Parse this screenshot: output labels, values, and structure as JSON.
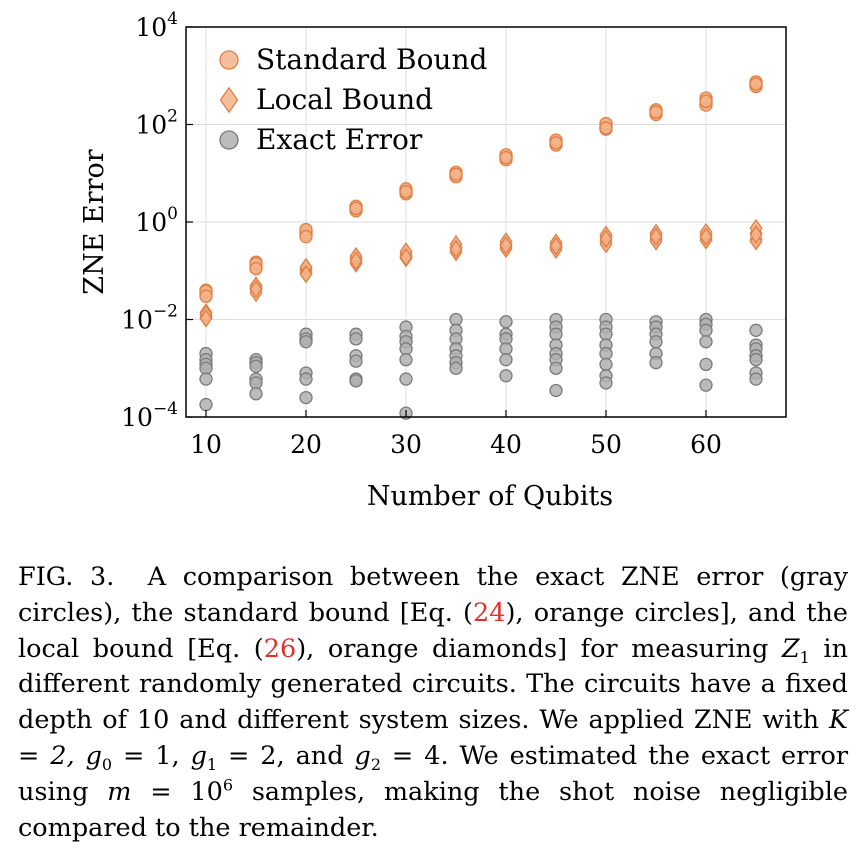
{
  "chart_data": {
    "type": "scatter",
    "xlabel": "Number of Qubits",
    "ylabel": "ZNE Error",
    "xlim": [
      8,
      68
    ],
    "xticks": [
      10,
      20,
      30,
      40,
      50,
      60
    ],
    "ylim": [
      0.0001,
      10000
    ],
    "yscale": "log",
    "yticks": [
      {
        "value": 0.0001,
        "base": "10",
        "exp": "−4"
      },
      {
        "value": 0.01,
        "base": "10",
        "exp": "−2"
      },
      {
        "value": 1,
        "base": "10",
        "exp": "0"
      },
      {
        "value": 100,
        "base": "10",
        "exp": "2"
      },
      {
        "value": 10000,
        "base": "10",
        "exp": "4"
      }
    ],
    "grid": true,
    "legend_position": "top-left",
    "series": [
      {
        "name": "Standard Bound",
        "marker": "circle",
        "color": "#f2b48c",
        "edge_color": "#e07f45",
        "points": [
          [
            10,
            0.035
          ],
          [
            10,
            0.04
          ],
          [
            10,
            0.032
          ],
          [
            10,
            0.038
          ],
          [
            10,
            0.03
          ],
          [
            15,
            0.13
          ],
          [
            15,
            0.15
          ],
          [
            15,
            0.12
          ],
          [
            15,
            0.14
          ],
          [
            15,
            0.11
          ],
          [
            20,
            0.6
          ],
          [
            20,
            0.65
          ],
          [
            20,
            0.55
          ],
          [
            20,
            0.7
          ],
          [
            20,
            0.5
          ],
          [
            25,
            1.8
          ],
          [
            25,
            2.0
          ],
          [
            25,
            1.7
          ],
          [
            25,
            2.1
          ],
          [
            25,
            1.9
          ],
          [
            30,
            4.0
          ],
          [
            30,
            4.5
          ],
          [
            30,
            3.8
          ],
          [
            30,
            4.8
          ],
          [
            30,
            4.2
          ],
          [
            35,
            9.0
          ],
          [
            35,
            10.0
          ],
          [
            35,
            8.5
          ],
          [
            35,
            10.5
          ],
          [
            35,
            9.5
          ],
          [
            40,
            20
          ],
          [
            40,
            22
          ],
          [
            40,
            19
          ],
          [
            40,
            24
          ],
          [
            40,
            21
          ],
          [
            45,
            40
          ],
          [
            45,
            45
          ],
          [
            45,
            38
          ],
          [
            45,
            48
          ],
          [
            45,
            42
          ],
          [
            50,
            90
          ],
          [
            50,
            100
          ],
          [
            50,
            80
          ],
          [
            50,
            105
          ],
          [
            50,
            85
          ],
          [
            55,
            170
          ],
          [
            55,
            190
          ],
          [
            55,
            160
          ],
          [
            55,
            200
          ],
          [
            55,
            180
          ],
          [
            60,
            280
          ],
          [
            60,
            320
          ],
          [
            60,
            250
          ],
          [
            60,
            350
          ],
          [
            60,
            300
          ],
          [
            65,
            650
          ],
          [
            65,
            700
          ],
          [
            65,
            600
          ],
          [
            65,
            750
          ],
          [
            65,
            680
          ]
        ]
      },
      {
        "name": "Local Bound",
        "marker": "diamond",
        "color": "#f2b48c",
        "edge_color": "#e07f45",
        "points": [
          [
            10,
            0.012
          ],
          [
            10,
            0.014
          ],
          [
            10,
            0.011
          ],
          [
            10,
            0.013
          ],
          [
            10,
            0.0105
          ],
          [
            15,
            0.04
          ],
          [
            15,
            0.045
          ],
          [
            15,
            0.035
          ],
          [
            15,
            0.05
          ],
          [
            15,
            0.042
          ],
          [
            20,
            0.1
          ],
          [
            20,
            0.11
          ],
          [
            20,
            0.09
          ],
          [
            20,
            0.12
          ],
          [
            20,
            0.085
          ],
          [
            25,
            0.15
          ],
          [
            25,
            0.18
          ],
          [
            25,
            0.14
          ],
          [
            25,
            0.2
          ],
          [
            25,
            0.16
          ],
          [
            30,
            0.2
          ],
          [
            30,
            0.22
          ],
          [
            30,
            0.18
          ],
          [
            30,
            0.25
          ],
          [
            30,
            0.19
          ],
          [
            35,
            0.25
          ],
          [
            35,
            0.3
          ],
          [
            35,
            0.24
          ],
          [
            35,
            0.35
          ],
          [
            35,
            0.28
          ],
          [
            40,
            0.3
          ],
          [
            40,
            0.35
          ],
          [
            40,
            0.28
          ],
          [
            40,
            0.4
          ],
          [
            40,
            0.33
          ],
          [
            45,
            0.3
          ],
          [
            45,
            0.35
          ],
          [
            45,
            0.27
          ],
          [
            45,
            0.38
          ],
          [
            45,
            0.32
          ],
          [
            50,
            0.4
          ],
          [
            50,
            0.5
          ],
          [
            50,
            0.35
          ],
          [
            50,
            0.55
          ],
          [
            50,
            0.45
          ],
          [
            55,
            0.45
          ],
          [
            55,
            0.55
          ],
          [
            55,
            0.4
          ],
          [
            55,
            0.6
          ],
          [
            55,
            0.5
          ],
          [
            60,
            0.45
          ],
          [
            60,
            0.55
          ],
          [
            60,
            0.42
          ],
          [
            60,
            0.62
          ],
          [
            60,
            0.5
          ],
          [
            65,
            0.45
          ],
          [
            65,
            0.6
          ],
          [
            65,
            0.4
          ],
          [
            65,
            0.75
          ],
          [
            65,
            0.55
          ]
        ]
      },
      {
        "name": "Exact Error",
        "marker": "circle",
        "color": "#b0b0b0",
        "edge_color": "#7a7a7a",
        "points": [
          [
            10,
            0.002
          ],
          [
            10,
            0.0015
          ],
          [
            10,
            0.0012
          ],
          [
            10,
            0.001
          ],
          [
            10,
            0.0006
          ],
          [
            10,
            0.00018
          ],
          [
            15,
            0.0015
          ],
          [
            15,
            0.0013
          ],
          [
            15,
            0.0011
          ],
          [
            15,
            0.0006
          ],
          [
            15,
            0.0005
          ],
          [
            15,
            0.0003
          ],
          [
            20,
            0.005
          ],
          [
            20,
            0.004
          ],
          [
            20,
            0.0035
          ],
          [
            20,
            0.0008
          ],
          [
            20,
            0.0006
          ],
          [
            20,
            0.00025
          ],
          [
            25,
            0.005
          ],
          [
            25,
            0.004
          ],
          [
            25,
            0.0018
          ],
          [
            25,
            0.0014
          ],
          [
            25,
            0.0006
          ],
          [
            25,
            0.00055
          ],
          [
            30,
            0.007
          ],
          [
            30,
            0.0045
          ],
          [
            30,
            0.0035
          ],
          [
            30,
            0.0025
          ],
          [
            30,
            0.0015
          ],
          [
            30,
            0.0006
          ],
          [
            30,
            0.00012
          ],
          [
            35,
            0.01
          ],
          [
            35,
            0.006
          ],
          [
            35,
            0.004
          ],
          [
            35,
            0.0025
          ],
          [
            35,
            0.0018
          ],
          [
            35,
            0.0013
          ],
          [
            35,
            0.001
          ],
          [
            40,
            0.009
          ],
          [
            40,
            0.005
          ],
          [
            40,
            0.004
          ],
          [
            40,
            0.0025
          ],
          [
            40,
            0.0015
          ],
          [
            40,
            0.0007
          ],
          [
            45,
            0.01
          ],
          [
            45,
            0.007
          ],
          [
            45,
            0.005
          ],
          [
            45,
            0.003
          ],
          [
            45,
            0.002
          ],
          [
            45,
            0.0015
          ],
          [
            45,
            0.001
          ],
          [
            45,
            0.00035
          ],
          [
            50,
            0.01
          ],
          [
            50,
            0.007
          ],
          [
            50,
            0.005
          ],
          [
            50,
            0.003
          ],
          [
            50,
            0.002
          ],
          [
            50,
            0.0012
          ],
          [
            50,
            0.0007
          ],
          [
            50,
            0.0005
          ],
          [
            55,
            0.009
          ],
          [
            55,
            0.007
          ],
          [
            55,
            0.005
          ],
          [
            55,
            0.0035
          ],
          [
            55,
            0.002
          ],
          [
            55,
            0.0013
          ],
          [
            60,
            0.01
          ],
          [
            60,
            0.008
          ],
          [
            60,
            0.006
          ],
          [
            60,
            0.0035
          ],
          [
            60,
            0.0012
          ],
          [
            60,
            0.00045
          ],
          [
            65,
            0.006
          ],
          [
            65,
            0.003
          ],
          [
            65,
            0.0025
          ],
          [
            65,
            0.0018
          ],
          [
            65,
            0.0015
          ],
          [
            65,
            0.0008
          ],
          [
            65,
            0.0006
          ]
        ]
      }
    ]
  },
  "caption": {
    "lead": "FIG. 3.",
    "p1": "A comparison between the exact ZNE error (gray circles), the standard bound [Eq. (",
    "ref1": "24",
    "p2": "), orange circles], and the local bound [Eq. (",
    "ref2": "26",
    "p3": "), orange diamonds] for measuring ",
    "p4": "in different randomly generated circuits. The circuits have a fixed depth of 10 and different system sizes. We applied ZNE with ",
    "p5": "and",
    "p6": ". We estimated the exact error using",
    "p7": "samples, making the shot noise negligible compared to the remainder.",
    "math_z1": "Z",
    "math_z1_sub": "1",
    "math_k": "K = 2,",
    "math_g0": "g",
    "math_g0_sub": "0",
    "math_g0_val": " = 1,",
    "math_g1": "g",
    "math_g1_sub": "1",
    "math_g1_val": " = 2,",
    "math_g2": "g",
    "math_g2_sub": "2",
    "math_g2_val": " = 4",
    "math_m": "m",
    "math_m_val": " = 10",
    "math_m_exp": "6"
  }
}
